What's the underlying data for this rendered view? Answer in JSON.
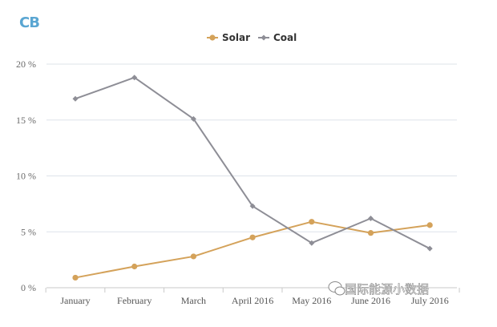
{
  "logo": {
    "text": "CB"
  },
  "watermark": {
    "text": "国际能源小数据"
  },
  "chart_data": {
    "type": "line",
    "title": "",
    "xlabel": "",
    "ylabel": "",
    "categories": [
      "January",
      "February",
      "March",
      "April 2016",
      "May 2016",
      "June 2016",
      "July 2016"
    ],
    "y_ticks": [
      "0 %",
      "5 %",
      "10 %",
      "15 %",
      "20 %"
    ],
    "ylim": [
      0,
      20
    ],
    "grid": true,
    "legend_position": "top",
    "series": [
      {
        "name": "Solar",
        "color": "#d4a25a",
        "marker": "circle",
        "values": [
          0.9,
          1.9,
          2.8,
          4.5,
          5.9,
          4.9,
          5.6
        ]
      },
      {
        "name": "Coal",
        "color": "#8e8e96",
        "marker": "diamond",
        "values": [
          16.9,
          18.8,
          15.1,
          7.3,
          4.0,
          6.2,
          3.5
        ]
      }
    ]
  }
}
